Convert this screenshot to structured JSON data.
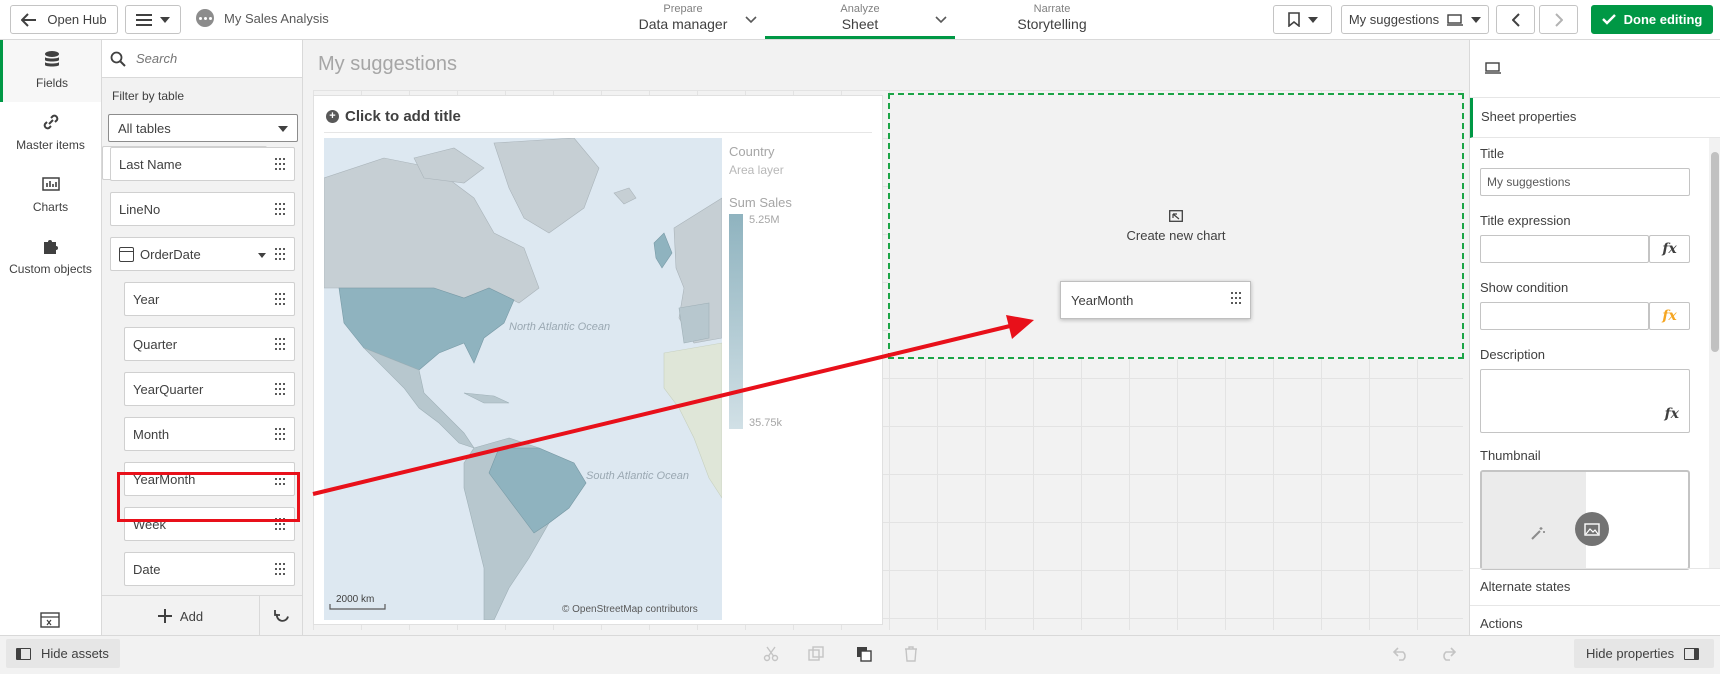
{
  "topbar": {
    "open_hub_label": "Open Hub",
    "app_name": "My Sales Analysis",
    "tabs": [
      {
        "small": "Prepare",
        "big": "Data manager"
      },
      {
        "small": "Analyze",
        "big": "Sheet"
      },
      {
        "small": "Narrate",
        "big": "Storytelling"
      }
    ],
    "sheet_selector_label": "My suggestions",
    "done_editing_label": "Done editing"
  },
  "rail": {
    "items": [
      {
        "label": "Fields"
      },
      {
        "label": "Master items"
      },
      {
        "label": "Charts"
      },
      {
        "label": "Custom objects"
      }
    ]
  },
  "fields_panel": {
    "search_placeholder": "Search",
    "filter_label": "Filter by table",
    "table_select_value": "All tables",
    "items": [
      {
        "label": "Last Name"
      },
      {
        "label": "LineNo"
      },
      {
        "label": "OrderDate"
      },
      {
        "label": "Year"
      },
      {
        "label": "Quarter"
      },
      {
        "label": "YearQuarter"
      },
      {
        "label": "Month"
      },
      {
        "label": "YearMonth"
      },
      {
        "label": "Week"
      },
      {
        "label": "Date"
      }
    ],
    "add_label": "Add"
  },
  "canvas": {
    "sheet_title": "My suggestions",
    "map_card": {
      "title_placeholder": "Click to add title",
      "legend_layer_name": "Country",
      "legend_layer_type": "Area layer",
      "legend_measure": "Sum Sales",
      "legend_max": "5.25M",
      "legend_min": "35.75k",
      "ocean_north": "North Atlantic Ocean",
      "ocean_south": "South Atlantic Ocean",
      "scale_label": "2000 km",
      "attribution": "© OpenStreetMap contributors"
    },
    "drop_zone_label": "Create new chart",
    "drag_item_label": "YearMonth"
  },
  "properties": {
    "header": "Sheet properties",
    "title_label": "Title",
    "title_value": "My suggestions",
    "title_expression_label": "Title expression",
    "show_condition_label": "Show condition",
    "description_label": "Description",
    "thumbnail_label": "Thumbnail",
    "fx_label": "fx",
    "alternate_states_label": "Alternate states",
    "actions_label": "Actions"
  },
  "bottombar": {
    "hide_assets_label": "Hide assets",
    "hide_properties_label": "Hide properties"
  },
  "colors": {
    "accent_green": "#009845",
    "highlight_red": "#e8101a",
    "drop_zone_dash": "#1ba446",
    "fx_orange": "#f5a623"
  }
}
